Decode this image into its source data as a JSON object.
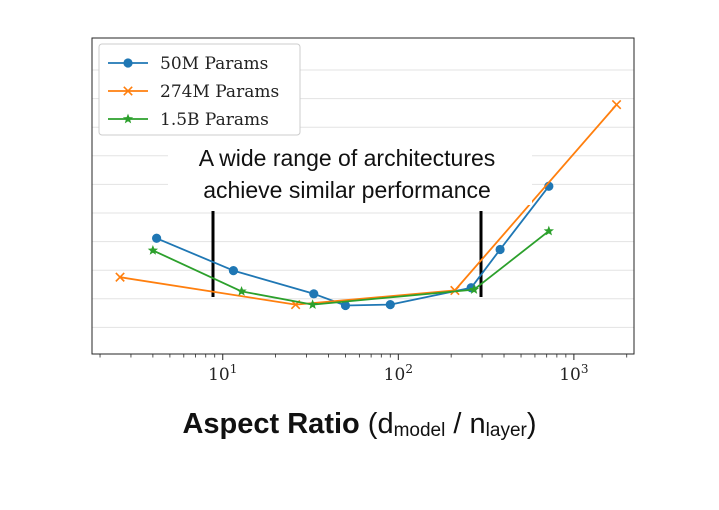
{
  "chart_data": {
    "type": "line",
    "xscale": "log",
    "xlim": [
      1.8,
      2200
    ],
    "ylim_relative": [
      0,
      1
    ],
    "xticks": [
      {
        "value": 10,
        "base": "10",
        "exp": "1"
      },
      {
        "value": 100,
        "base": "10",
        "exp": "2"
      },
      {
        "value": 1000,
        "base": "10",
        "exp": "3"
      }
    ],
    "grid": true,
    "legend": {
      "location": "top-left",
      "entries": [
        {
          "series": 0,
          "label": "50M Params"
        },
        {
          "series": 1,
          "label": "274M Params"
        },
        {
          "series": 2,
          "label": "1.5B Params"
        }
      ]
    },
    "series": [
      {
        "name": "50M Params",
        "color": "#1f77b4",
        "marker": "circle",
        "x": [
          4.2,
          11.5,
          33,
          50,
          90,
          260,
          380,
          720
        ],
        "y": [
          0.39,
          0.246,
          0.143,
          0.091,
          0.095,
          0.17,
          0.34,
          0.621
        ]
      },
      {
        "name": "274M Params",
        "color": "#ff7f0e",
        "marker": "x",
        "x": [
          2.6,
          26,
          210,
          1750
        ],
        "y": [
          0.217,
          0.095,
          0.158,
          0.984
        ]
      },
      {
        "name": "1.5B Params",
        "color": "#2ca02c",
        "marker": "star",
        "x": [
          4.0,
          12.8,
          32.5,
          270,
          720
        ],
        "y": [
          0.336,
          0.154,
          0.095,
          0.162,
          0.422
        ]
      }
    ],
    "annotations": [
      {
        "lines": [
          "A wide range of architectures",
          "achieve similar performance"
        ]
      }
    ],
    "xlabel": {
      "main": "Aspect Ratio",
      "open": " (d",
      "sub1": "model",
      "middle": " / n",
      "sub2": "layer",
      "close": ")"
    }
  }
}
